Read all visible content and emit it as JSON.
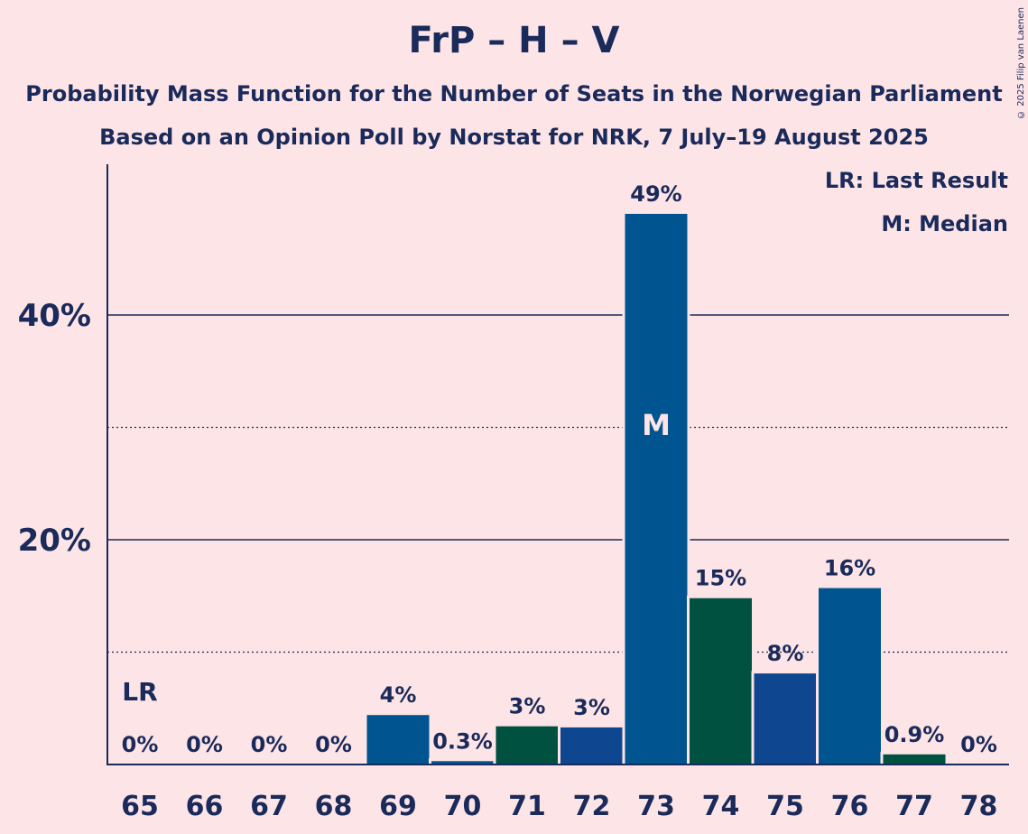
{
  "title": "FrP – H – V",
  "subtitle1": "Probability Mass Function for the Number of Seats in the Norwegian Parliament",
  "subtitle2": "Based on an Opinion Poll by Norstat for NRK, 7 July–19 August 2025",
  "copyright": "© 2025 Filip van Laenen",
  "legend": {
    "lr": "LR: Last Result",
    "m": "M: Median"
  },
  "colors": {
    "background": "#fde4e6",
    "text": "#1a2a5a",
    "bar_blue": "#00548f",
    "bar_green": "#00513f",
    "bar_navy": "#0e4690"
  },
  "chart_data": {
    "type": "bar",
    "title": "FrP – H – V",
    "xlabel": "",
    "ylabel": "",
    "ylim": [
      0,
      53
    ],
    "yticks_major": [
      {
        "value": 20,
        "label": "20%"
      },
      {
        "value": 40,
        "label": "40%"
      }
    ],
    "yticks_minor": [
      10,
      30
    ],
    "grid": true,
    "categories": [
      "65",
      "66",
      "67",
      "68",
      "69",
      "70",
      "71",
      "72",
      "73",
      "74",
      "75",
      "76",
      "77",
      "78"
    ],
    "values": [
      0,
      0,
      0,
      0,
      4.4,
      0.3,
      3.4,
      3.3,
      49,
      14.8,
      8.1,
      15.7,
      0.9,
      0
    ],
    "labels": [
      "0%",
      "0%",
      "0%",
      "0%",
      "4%",
      "0.3%",
      "3%",
      "3%",
      "49%",
      "15%",
      "8%",
      "16%",
      "0.9%",
      "0%"
    ],
    "bar_colors": [
      "#00548f",
      "#00548f",
      "#00548f",
      "#00548f",
      "#00548f",
      "#00548f",
      "#00513f",
      "#0e4690",
      "#00548f",
      "#00513f",
      "#0e4690",
      "#00548f",
      "#00513f",
      "#00548f"
    ],
    "last_result": {
      "category": "65",
      "label": "LR"
    },
    "median": {
      "category": "73",
      "label": "M"
    }
  }
}
